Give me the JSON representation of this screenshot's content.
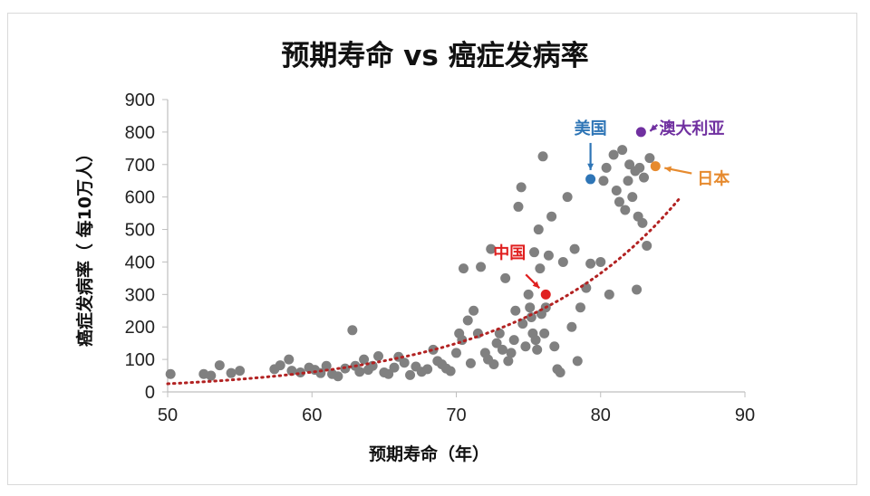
{
  "chart_data": {
    "type": "scatter",
    "title": "预期寿命 vs 癌症发病率",
    "xlabel": "预期寿命（年）",
    "ylabel": "癌症发病率（ 每10万人）",
    "xlim": [
      50,
      90
    ],
    "ylim": [
      0,
      900
    ],
    "xticks": [
      50,
      60,
      70,
      80,
      90
    ],
    "yticks": [
      0,
      100,
      200,
      300,
      400,
      500,
      600,
      700,
      800,
      900
    ],
    "grid": false,
    "trendline": {
      "style": "dotted",
      "type": "exponential",
      "color": "#b22222",
      "x_range": [
        50,
        85.5
      ]
    },
    "point_color": "#808080",
    "points": [
      [
        50.2,
        55
      ],
      [
        52.5,
        55
      ],
      [
        53.0,
        50
      ],
      [
        53.6,
        82
      ],
      [
        54.4,
        58
      ],
      [
        55.0,
        65
      ],
      [
        57.4,
        70
      ],
      [
        57.8,
        82
      ],
      [
        58.4,
        100
      ],
      [
        58.6,
        65
      ],
      [
        59.2,
        60
      ],
      [
        59.8,
        75
      ],
      [
        60.2,
        68
      ],
      [
        60.6,
        58
      ],
      [
        61.0,
        80
      ],
      [
        61.4,
        55
      ],
      [
        61.8,
        48
      ],
      [
        62.3,
        72
      ],
      [
        62.8,
        190
      ],
      [
        63.0,
        80
      ],
      [
        63.3,
        62
      ],
      [
        63.6,
        100
      ],
      [
        63.9,
        68
      ],
      [
        64.2,
        80
      ],
      [
        64.6,
        110
      ],
      [
        65.0,
        60
      ],
      [
        65.3,
        55
      ],
      [
        65.7,
        75
      ],
      [
        66.0,
        108
      ],
      [
        66.4,
        90
      ],
      [
        66.8,
        52
      ],
      [
        67.2,
        78
      ],
      [
        67.6,
        62
      ],
      [
        68.0,
        70
      ],
      [
        68.4,
        130
      ],
      [
        68.7,
        95
      ],
      [
        69.0,
        85
      ],
      [
        69.3,
        72
      ],
      [
        69.6,
        64
      ],
      [
        70.0,
        120
      ],
      [
        70.2,
        180
      ],
      [
        70.4,
        160
      ],
      [
        70.5,
        380
      ],
      [
        70.8,
        220
      ],
      [
        71.0,
        88
      ],
      [
        71.2,
        250
      ],
      [
        71.5,
        180
      ],
      [
        71.7,
        385
      ],
      [
        72.0,
        120
      ],
      [
        72.2,
        100
      ],
      [
        72.4,
        440
      ],
      [
        72.6,
        85
      ],
      [
        72.8,
        150
      ],
      [
        73.0,
        180
      ],
      [
        73.2,
        130
      ],
      [
        73.4,
        350
      ],
      [
        73.6,
        95
      ],
      [
        73.8,
        120
      ],
      [
        74.0,
        160
      ],
      [
        74.1,
        250
      ],
      [
        74.3,
        570
      ],
      [
        74.5,
        630
      ],
      [
        74.6,
        210
      ],
      [
        74.8,
        140
      ],
      [
        75.0,
        300
      ],
      [
        75.1,
        260
      ],
      [
        75.2,
        230
      ],
      [
        75.3,
        180
      ],
      [
        75.4,
        430
      ],
      [
        75.5,
        160
      ],
      [
        75.6,
        130
      ],
      [
        75.7,
        500
      ],
      [
        75.8,
        380
      ],
      [
        75.9,
        240
      ],
      [
        76.0,
        725
      ],
      [
        76.1,
        180
      ],
      [
        76.2,
        260
      ],
      [
        76.4,
        420
      ],
      [
        76.6,
        540
      ],
      [
        76.8,
        140
      ],
      [
        77.0,
        70
      ],
      [
        77.2,
        60
      ],
      [
        77.4,
        400
      ],
      [
        77.7,
        600
      ],
      [
        78.0,
        200
      ],
      [
        78.2,
        440
      ],
      [
        78.4,
        95
      ],
      [
        78.6,
        260
      ],
      [
        79.0,
        320
      ],
      [
        79.3,
        395
      ],
      [
        80.2,
        650
      ],
      [
        80.4,
        690
      ],
      [
        80.6,
        300
      ],
      [
        80.9,
        730
      ],
      [
        81.1,
        620
      ],
      [
        81.3,
        585
      ],
      [
        81.5,
        745
      ],
      [
        81.7,
        560
      ],
      [
        81.9,
        650
      ],
      [
        82.0,
        700
      ],
      [
        82.2,
        600
      ],
      [
        82.4,
        680
      ],
      [
        82.6,
        540
      ],
      [
        82.7,
        690
      ],
      [
        82.9,
        520
      ],
      [
        83.0,
        660
      ],
      [
        83.2,
        450
      ],
      [
        83.4,
        720
      ],
      [
        82.5,
        315
      ],
      [
        80.0,
        400
      ]
    ],
    "highlights": [
      {
        "label": "美国",
        "x": 79.3,
        "y": 655,
        "color": "#2e75b6"
      },
      {
        "label": "澳大利亚",
        "x": 82.8,
        "y": 800,
        "color": "#7030a0"
      },
      {
        "label": "日本",
        "x": 83.8,
        "y": 695,
        "color": "#e68a2e"
      },
      {
        "label": "中国",
        "x": 76.2,
        "y": 300,
        "color": "#e02020"
      }
    ]
  }
}
